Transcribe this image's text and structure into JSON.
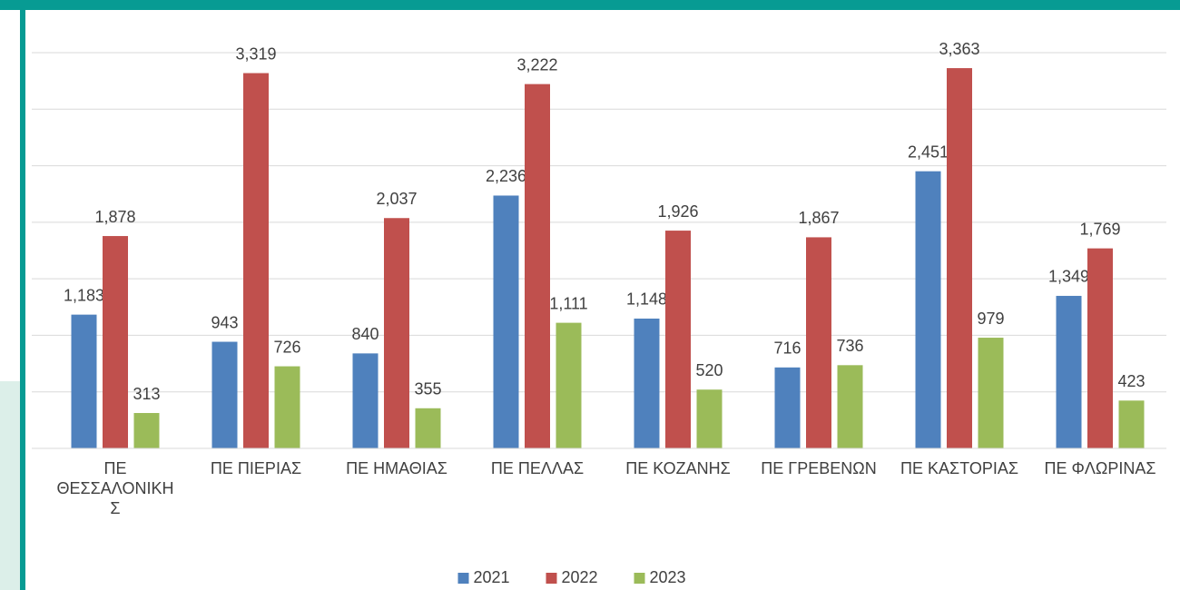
{
  "chart_data": {
    "type": "bar",
    "categories": [
      "ΠΕ ΘΕΣΣΑΛΟΝΙΚΗΣ",
      "ΠΕ ΠΙΕΡΙΑΣ",
      "ΠΕ ΗΜΑΘΙΑΣ",
      "ΠΕ ΠΕΛΛΑΣ",
      "ΠΕ ΚΟΖΑΝΗΣ",
      "ΠΕ ΓΡΕΒΕΝΩΝ",
      "ΠΕ ΚΑΣΤΟΡΙΑΣ",
      "ΠΕ ΦΛΩΡΙΝΑΣ"
    ],
    "series": [
      {
        "name": "2021",
        "color": "#4f81bd",
        "values": [
          1183,
          943,
          840,
          2236,
          1148,
          716,
          2451,
          1349
        ],
        "value_labels": [
          "1,183",
          "943",
          "840",
          "2,236",
          "1,148",
          "716",
          "2,451",
          "1,349"
        ]
      },
      {
        "name": "2022",
        "color": "#c0504d",
        "values": [
          1878,
          3319,
          2037,
          3222,
          1926,
          1867,
          3363,
          1769
        ],
        "value_labels": [
          "1,878",
          "3,319",
          "2,037",
          "3,222",
          "1,926",
          "1,867",
          "3,363",
          "1,769"
        ]
      },
      {
        "name": "2023",
        "color": "#9bbb59",
        "values": [
          313,
          726,
          355,
          1111,
          520,
          736,
          979,
          423
        ],
        "value_labels": [
          "313",
          "726",
          "355",
          "1,111",
          "520",
          "736",
          "979",
          "423"
        ]
      }
    ],
    "ylim": [
      0,
      3500
    ],
    "yticks": [
      0,
      500,
      1000,
      1500,
      2000,
      2500,
      3000,
      3500
    ],
    "grid": true,
    "legend": "bottom"
  }
}
